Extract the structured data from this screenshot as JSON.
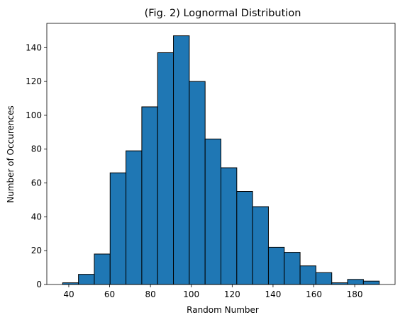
{
  "chart_data": {
    "type": "bar",
    "title": "(Fig. 2) Lognormal Distribution",
    "xlabel": "Random Number",
    "ylabel": "Number of Occurences",
    "bin_edges": [
      37.0,
      44.75,
      52.5,
      60.25,
      68.0,
      75.75,
      83.5,
      91.25,
      99.0,
      106.75,
      114.5,
      122.25,
      130.0,
      137.75,
      145.5,
      153.25,
      161.0,
      168.75,
      176.5,
      184.25,
      192.0
    ],
    "values": [
      1,
      6,
      18,
      66,
      79,
      105,
      137,
      147,
      120,
      86,
      69,
      55,
      46,
      22,
      19,
      11,
      7,
      1,
      3,
      2
    ],
    "xlim": [
      29.25,
      199.75
    ],
    "ylim": [
      0,
      154.35
    ],
    "xticks": [
      40,
      60,
      80,
      100,
      120,
      140,
      160,
      180
    ],
    "yticks": [
      0,
      20,
      40,
      60,
      80,
      100,
      120,
      140
    ],
    "bar_color": "#1f77b4",
    "edge_color": "#000000",
    "grid": false,
    "legend": "none"
  }
}
